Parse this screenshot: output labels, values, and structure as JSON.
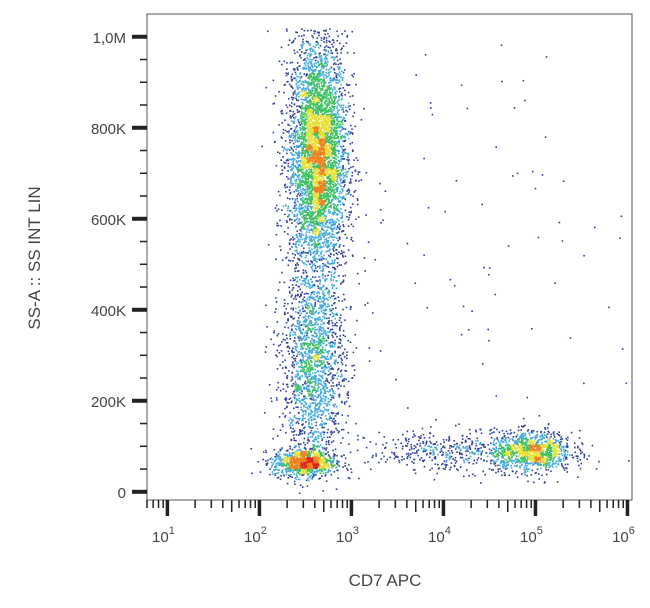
{
  "chart_data": {
    "type": "scatter",
    "subtype": "flow-cytometry density dot plot",
    "title": "",
    "xlabel": "CD7 APC",
    "ylabel": "SS-A :: SS INT LIN",
    "x_scale": "log",
    "xlim": [
      6,
      1120000
    ],
    "ylim": [
      -18000,
      1050000
    ],
    "x_ticks": [
      {
        "base": "10",
        "exp": "1",
        "value": 10
      },
      {
        "base": "10",
        "exp": "2",
        "value": 100
      },
      {
        "base": "10",
        "exp": "3",
        "value": 1000
      },
      {
        "base": "10",
        "exp": "4",
        "value": 10000
      },
      {
        "base": "10",
        "exp": "5",
        "value": 100000
      },
      {
        "base": "10",
        "exp": "6",
        "value": 1000000
      }
    ],
    "y_ticks": [
      {
        "label": "0",
        "value": 0
      },
      {
        "label": "200K",
        "value": 200000
      },
      {
        "label": "400K",
        "value": 400000
      },
      {
        "label": "600K",
        "value": 600000
      },
      {
        "label": "800K",
        "value": 800000
      },
      {
        "label": "1,0M",
        "value": 1000000
      }
    ],
    "grid": false,
    "legend": "none",
    "color_scale": [
      "#2e3f9e",
      "#3fa9e0",
      "#3cc060",
      "#e8e030",
      "#f08020",
      "#e02020"
    ],
    "populations": [
      {
        "x_center": 420,
        "x_log_sd": 0.16,
        "y_center": 740000,
        "y_sd": 130000,
        "relative_count": 0.52
      },
      {
        "x_center": 380,
        "x_log_sd": 0.17,
        "y_center": 280000,
        "y_sd": 110000,
        "relative_count": 0.2
      },
      {
        "x_center": 300,
        "x_log_sd": 0.17,
        "y_center": 65000,
        "y_sd": 15000,
        "relative_count": 0.1
      },
      {
        "x_center": 90000,
        "x_log_sd": 0.22,
        "y_center": 90000,
        "y_sd": 22000,
        "relative_count": 0.12
      },
      {
        "x_center": 12000,
        "x_log_sd": 0.45,
        "y_center": 90000,
        "y_sd": 22000,
        "relative_count": 0.05
      },
      {
        "x_center": 30000,
        "x_log_sd": 1.0,
        "y_center": 550000,
        "y_sd": 250000,
        "relative_count": 0.01
      }
    ]
  }
}
